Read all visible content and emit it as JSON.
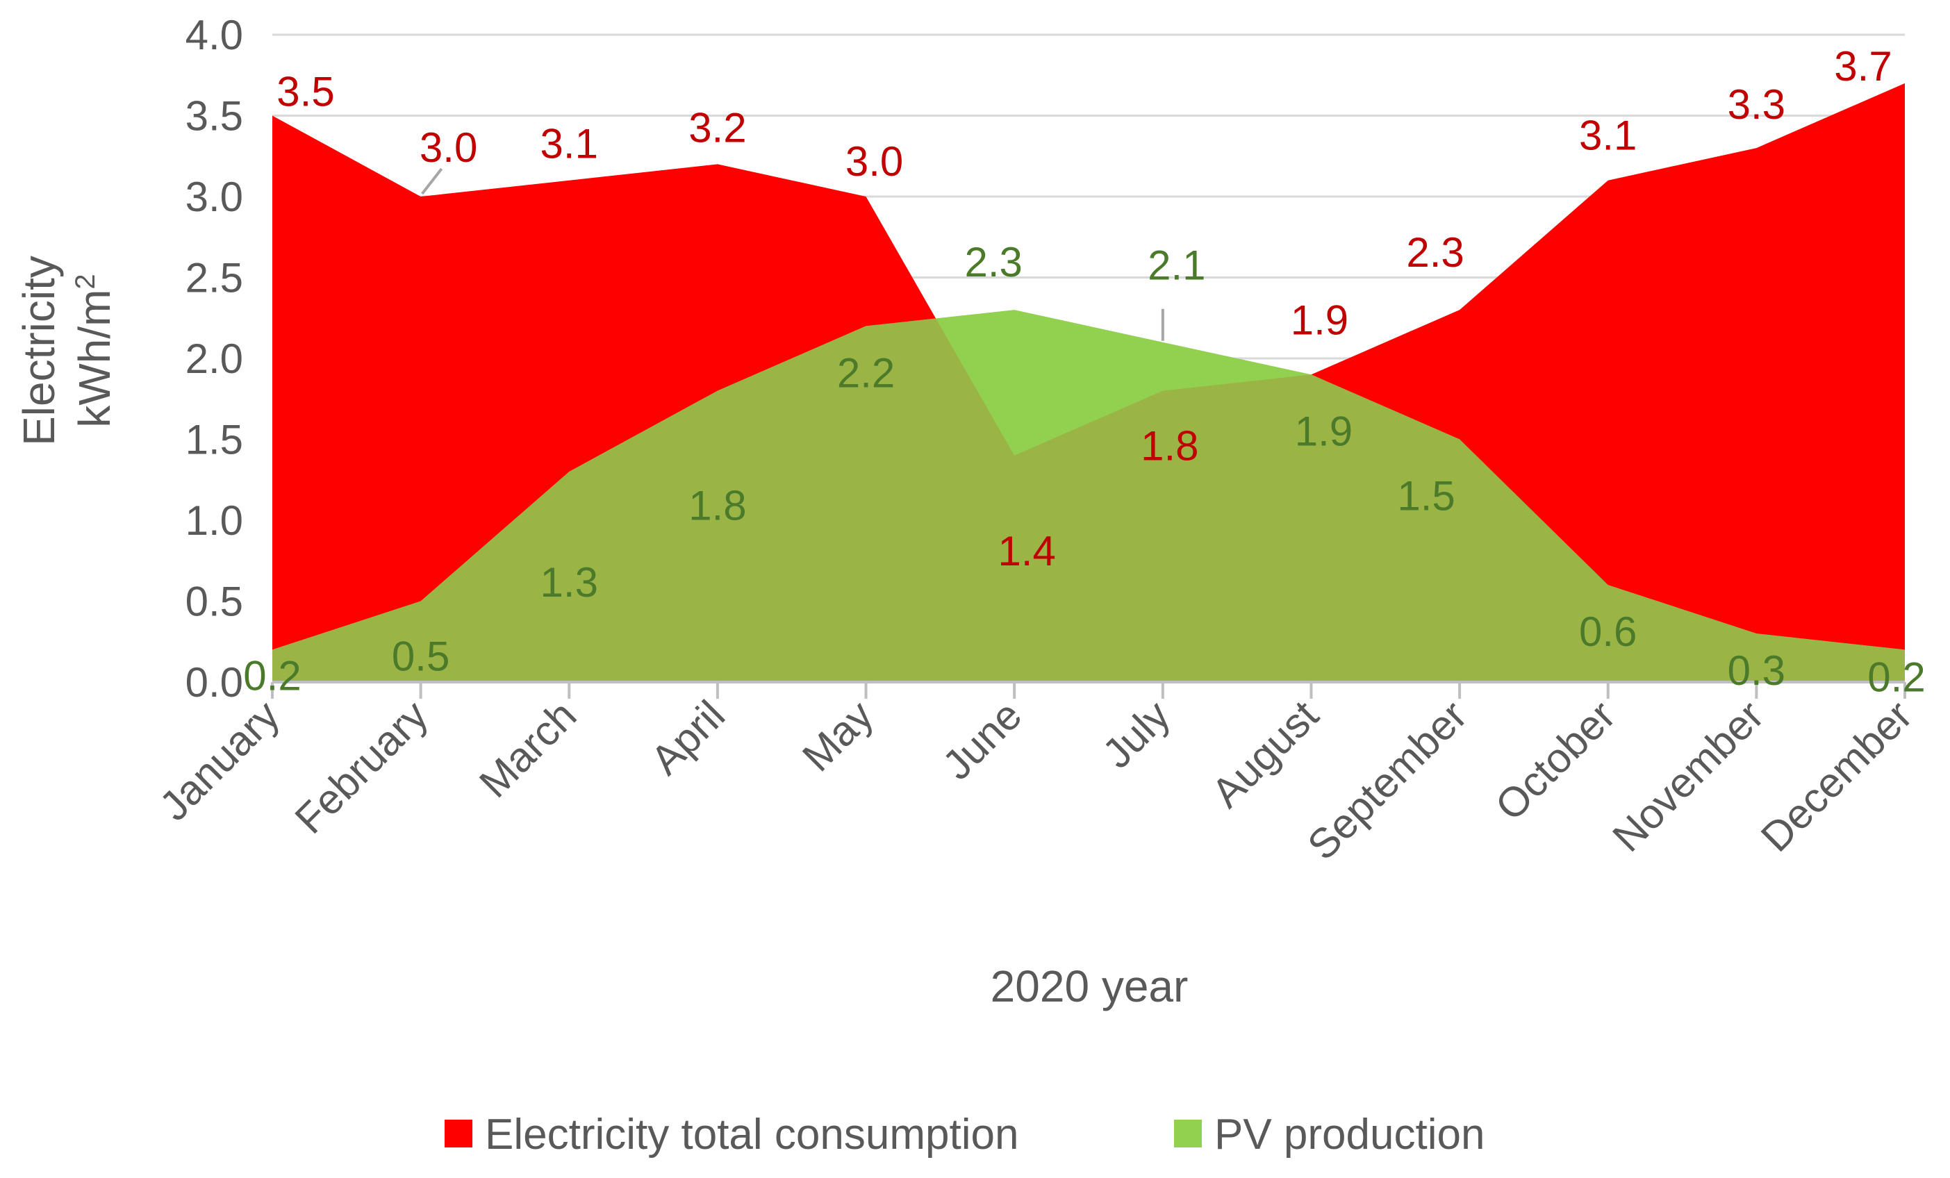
{
  "chart_data": {
    "type": "area",
    "title": "",
    "xlabel": "2020 year",
    "ylabel_line1": "Electricity",
    "ylabel_unit": "kWh/m",
    "ylabel_superscript": "2",
    "ylim": [
      0,
      4
    ],
    "y_ticks": [
      "0.0",
      "0.5",
      "1.0",
      "1.5",
      "2.0",
      "2.5",
      "3.0",
      "3.5",
      "4.0"
    ],
    "categories": [
      "January",
      "February",
      "March",
      "April",
      "May",
      "June",
      "July",
      "August",
      "September",
      "October",
      "November",
      "December"
    ],
    "grid": true,
    "legend_position": "bottom",
    "series": [
      {
        "name": "Electricity total consumption",
        "color": "#ff0000",
        "label_color": "#c00000",
        "values": [
          3.5,
          3.0,
          3.1,
          3.2,
          3.0,
          1.4,
          1.8,
          1.9,
          2.3,
          3.1,
          3.3,
          3.7
        ],
        "labels": [
          "3.5",
          "3.0",
          "3.1",
          "3.2",
          "3.0",
          "1.4",
          "1.8",
          "1.9",
          "2.3",
          "3.1",
          "3.3",
          "3.7"
        ]
      },
      {
        "name": "PV production",
        "color": "#92d050",
        "overlap_color": "#9bb446",
        "label_color": "#4a7a2a",
        "values": [
          0.2,
          0.5,
          1.3,
          1.8,
          2.2,
          2.3,
          2.1,
          1.9,
          1.5,
          0.6,
          0.3,
          0.2
        ],
        "labels": [
          "0.2",
          "0.5",
          "1.3",
          "1.8",
          "2.2",
          "2.3",
          "2.1",
          "1.9",
          "1.5",
          "0.6",
          "0.3",
          "0.2"
        ]
      }
    ]
  }
}
